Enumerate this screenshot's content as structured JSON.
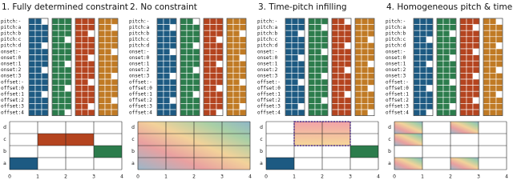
{
  "panels": [
    {
      "title": "1. Fully determined constraint"
    },
    {
      "title": "2. No constraint"
    },
    {
      "title": "3. Time-pitch infilling"
    },
    {
      "title": "4. Homogeneous pitch & time constraint"
    }
  ],
  "row_labels": [
    "pitch:-",
    "pitch:a",
    "pitch:b",
    "pitch:c",
    "pitch:d",
    "onset:-",
    "onset:0",
    "onset:1",
    "onset:2",
    "onset:3",
    "offset:-",
    "offset:0",
    "offset:1",
    "offset:2",
    "offset:3",
    "offset:4"
  ],
  "roll": {
    "pitch_labels": [
      "a",
      "b",
      "c",
      "d"
    ],
    "x_ticks": [
      "0",
      "1",
      "2",
      "3",
      "4"
    ]
  }
}
